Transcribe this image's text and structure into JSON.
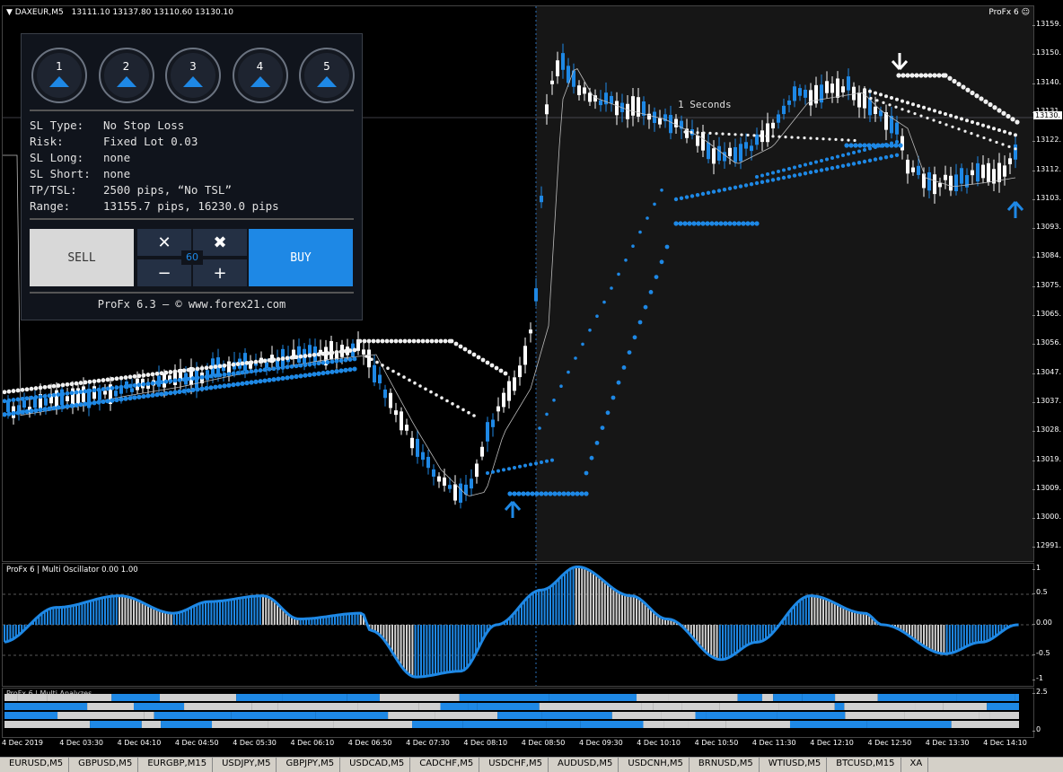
{
  "chart": {
    "symbol": "DAXEUR,M5",
    "ohlc": "13111.10 13137.80 13110.60 13130.10",
    "badge": "ProFx 6",
    "current_price": "13130.",
    "price_ticks": [
      "13159.",
      "13150.",
      "13140.",
      "13131.",
      "13122.",
      "13112.",
      "13103.",
      "13093.",
      "13084.",
      "13075.",
      "13065.",
      "13056.",
      "13047.",
      "13037.",
      "13028.",
      "13019.",
      "13009.",
      "13000.",
      "12991."
    ],
    "timer": "1 Seconds"
  },
  "panel": {
    "buttons": [
      "1",
      "2",
      "3",
      "4",
      "5"
    ],
    "info": [
      {
        "k": "SL Type:",
        "v": "No Stop Loss"
      },
      {
        "k": "Risk:",
        "v": "Fixed Lot 0.03"
      },
      {
        "k": "SL Long:",
        "v": "none"
      },
      {
        "k": "SL Short:",
        "v": "none"
      },
      {
        "k": "TP/TSL:",
        "v": "2500 pips, “No TSL”"
      },
      {
        "k": "Range:",
        "v": "13155.7 pips, 16230.0 pips"
      }
    ],
    "sell_label": "SELL",
    "buy_label": "BUY",
    "close_sym": "✕",
    "close_all_sym": "✖",
    "minus_sym": "−",
    "plus_sym": "+",
    "lot_value": "60",
    "footer": "ProFx 6.3 – © www.forex21.com"
  },
  "oscillator": {
    "title": "ProFx 6 | Multi Oscillator 0.00 1.00",
    "ticks": [
      "1",
      "0.5",
      "0.00",
      "-0.5",
      "-1"
    ]
  },
  "analyzes": {
    "title": "ProFx 6 | Multi Analyzes",
    "ticks": [
      "2.5",
      "0"
    ]
  },
  "time_labels": [
    "4 Dec 2019",
    "4 Dec 03:30",
    "4 Dec 04:10",
    "4 Dec 04:50",
    "4 Dec 05:30",
    "4 Dec 06:10",
    "4 Dec 06:50",
    "4 Dec 07:30",
    "4 Dec 08:10",
    "4 Dec 08:50",
    "4 Dec 09:30",
    "4 Dec 10:10",
    "4 Dec 10:50",
    "4 Dec 11:30",
    "4 Dec 12:10",
    "4 Dec 12:50",
    "4 Dec 13:30",
    "4 Dec 14:10"
  ],
  "tabs": [
    "EURUSD,M5",
    "GBPUSD,M5",
    "EURGBP,M15",
    "USDJPY,M5",
    "GBPJPY,M5",
    "USDCAD,M5",
    "CADCHF,M5",
    "USDCHF,M5",
    "AUDUSD,M5",
    "USDCNH,M5",
    "BRNUSD,M5",
    "WTIUSD,M5",
    "BTCUSD,M15",
    "XA"
  ],
  "colors": {
    "blue": "#1e88e5",
    "white": "#f0f0f0",
    "grey": "#d0d0d0",
    "shade": "#161616"
  }
}
